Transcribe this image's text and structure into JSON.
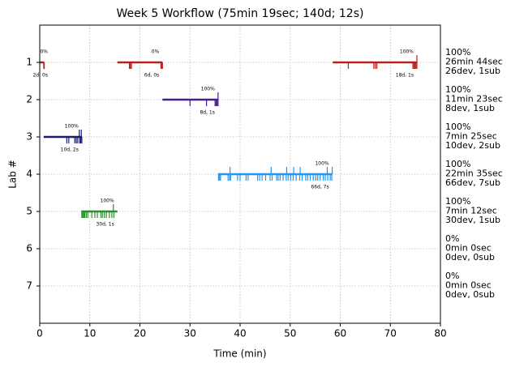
{
  "chart_data": {
    "type": "timeline",
    "title": "Week 5 Workflow (75min 19sec; 140d; 12s)",
    "x_label": "Time (min)",
    "y_label": "Lab #",
    "xlim": [
      0,
      80
    ],
    "xticks": [
      0,
      10,
      20,
      30,
      40,
      50,
      60,
      70,
      80
    ],
    "ylim": [
      8,
      0
    ],
    "yticks": [
      1,
      2,
      3,
      4,
      5,
      6,
      7
    ],
    "grid": true,
    "labs": [
      {
        "lab": 1,
        "color": "#b22222",
        "summary": [
          "100%",
          "26min 44sec",
          "26dev, 1sub"
        ],
        "segments": [
          {
            "start": 0,
            "end": 0.9,
            "percent_label": "0%",
            "count_label": "2d, 0s",
            "deploys": [
              0.8,
              0.9
            ],
            "submits": []
          },
          {
            "start": 15.5,
            "end": 24.5,
            "percent_label": "0%",
            "count_label": "6d, 0s",
            "deploys": [
              17.9,
              18.1,
              18.3,
              24.2,
              24.4,
              24.5
            ],
            "submits": []
          },
          {
            "start": 58.5,
            "end": 75.3,
            "percent_label": "100%",
            "count_label": "18d, 1s",
            "deploys": [
              61.6,
              66.7,
              67.0,
              67.3,
              74.5,
              74.7,
              74.9,
              75.1,
              75.3
            ],
            "submits": [
              75.3
            ]
          }
        ]
      },
      {
        "lab": 2,
        "color": "#4b1a8c",
        "summary": [
          "100%",
          "11min 23sec",
          "8dev, 1sub"
        ],
        "segments": [
          {
            "start": 24.5,
            "end": 35.6,
            "percent_label": "100%",
            "count_label": "8d, 1s",
            "deploys": [
              30.0,
              33.3,
              35.0,
              35.2,
              35.4,
              35.6
            ],
            "submits": [
              35.6
            ]
          }
        ]
      },
      {
        "lab": 3,
        "color": "#1a1a6e",
        "summary": [
          "100%",
          "7min 25sec",
          "10dev, 2sub"
        ],
        "segments": [
          {
            "start": 0.8,
            "end": 8.4,
            "percent_label": "100%",
            "count_label": "10d, 2s",
            "deploys": [
              5.4,
              5.8,
              7.0,
              7.3,
              7.6,
              8.0,
              8.2,
              8.4
            ],
            "submits": [
              7.9,
              8.3
            ]
          }
        ]
      },
      {
        "lab": 4,
        "color": "#2196f3",
        "summary": [
          "100%",
          "22min 35sec",
          "66dev, 7sub"
        ],
        "segments": [
          {
            "start": 35.6,
            "end": 58.4,
            "percent_label": "100%",
            "count_label": "66d, 7s",
            "deploys": [
              35.7,
              35.9,
              36.1,
              37.6,
              37.9,
              38.1,
              39.5,
              40.0,
              41.2,
              41.6,
              43.5,
              43.9,
              44.4,
              45.1,
              46.0,
              46.4,
              47.3,
              47.6,
              48.0,
              48.6,
              49.2,
              49.6,
              50.1,
              50.6,
              51.2,
              51.9,
              52.4,
              53.1,
              53.5,
              54.0,
              54.6,
              55.1,
              55.5,
              56.0,
              56.6,
              57.0,
              57.5,
              58.0,
              58.3
            ],
            "submits": [
              38.0,
              46.2,
              49.3,
              50.7,
              52.0,
              57.4,
              58.4
            ]
          }
        ]
      },
      {
        "lab": 5,
        "color": "#2e8b2e",
        "summary": [
          "100%",
          "7min 12sec",
          "30dev, 1sub"
        ],
        "segments": [
          {
            "start": 8.3,
            "end": 15.5,
            "percent_label": "100%",
            "count_label": "30d, 1s",
            "deploys": [
              8.4,
              8.6,
              8.8,
              9.0,
              9.3,
              9.6,
              10.4,
              11.0,
              11.5,
              12.2,
              12.5,
              12.9,
              13.3,
              13.9,
              14.4,
              14.8
            ],
            "submits": [
              14.7
            ]
          }
        ]
      },
      {
        "lab": 6,
        "color": "#d95000",
        "summary": [
          "0%",
          "0min 0sec",
          "0dev, 0sub"
        ],
        "segments": []
      },
      {
        "lab": 7,
        "color": "#000000",
        "summary": [
          "0%",
          "0min 0sec",
          "0dev, 0sub"
        ],
        "segments": []
      }
    ]
  }
}
